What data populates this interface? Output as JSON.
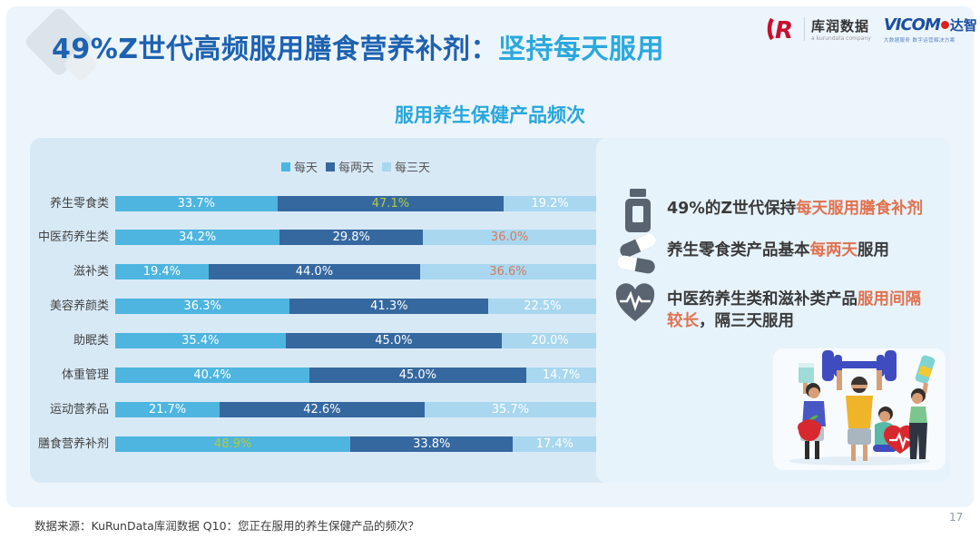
{
  "page": {
    "title_main": "49%Z世代高频服用膳食营养补剂：",
    "title_highlight": "坚持每天服用",
    "page_number": "17",
    "source_note": "数据来源：KuRunData库润数据 Q10：您正在服用的养生保健产品的频次？"
  },
  "logos": {
    "kurun": {
      "monogram": "R",
      "name": "库润数据",
      "tagline": "a kurundata company"
    },
    "vicom": {
      "name": "VICOM",
      "suffix": "达智",
      "tagline": "大数据服务 数字运营解决方案"
    }
  },
  "chart_data": {
    "type": "bar",
    "orientation": "horizontal-stacked",
    "title": "服用养生保健产品频次",
    "legend_position": "top",
    "categories": [
      "养生零食类",
      "中医药养生类",
      "滋补类",
      "美容养颜类",
      "助眠类",
      "体重管理",
      "运动营养品",
      "膳食营养补剂"
    ],
    "series": [
      {
        "name": "每天",
        "color": "#4db5df",
        "values": [
          33.7,
          34.2,
          19.4,
          36.3,
          35.4,
          40.4,
          21.7,
          48.9
        ]
      },
      {
        "name": "每两天",
        "color": "#35689f",
        "values": [
          47.1,
          29.8,
          44.0,
          41.3,
          45.0,
          45.0,
          42.6,
          33.8
        ]
      },
      {
        "name": "每三天",
        "color": "#a8d7ef",
        "values": [
          19.2,
          36.0,
          36.6,
          22.5,
          20.0,
          14.7,
          35.7,
          17.4
        ]
      }
    ],
    "label_format": "{value}%",
    "value_label_default_color": "#ffffff",
    "label_overrides": [
      {
        "row": 0,
        "series": 1,
        "color": "#b2cc3e"
      },
      {
        "row": 1,
        "series": 2,
        "color": "#d57a5e"
      },
      {
        "row": 2,
        "series": 2,
        "color": "#d57a5e"
      },
      {
        "row": 7,
        "series": 0,
        "color": "#b2cc3e"
      }
    ],
    "xlim": [
      0,
      100
    ]
  },
  "insights": [
    {
      "icon": "pill-bottle-icon",
      "parts": [
        {
          "t": "49%的Z世代保持",
          "c": "dark"
        },
        {
          "t": "每天服用膳食补剂",
          "c": "accent"
        }
      ]
    },
    {
      "icon": "capsules-icon",
      "parts": [
        {
          "t": "养生零食类产品基本",
          "c": "dark"
        },
        {
          "t": "每两天",
          "c": "accent"
        },
        {
          "t": "服用",
          "c": "dark"
        }
      ]
    },
    {
      "icon": "heart-pulse-icon",
      "parts": [
        {
          "t": "中医药养生类和滋补类产品",
          "c": "dark"
        },
        {
          "t": "服用间隔较长",
          "c": "accent"
        },
        {
          "t": "，隔三天服用",
          "c": "dark"
        }
      ]
    }
  ],
  "colors": {
    "title_main": "#1e62b0",
    "title_highlight": "#2ba9dd",
    "chart_title": "#28a7da",
    "panel_bg": "#d8e9f6",
    "right_panel_bg": "#e7f3fb",
    "accent_text": "#e0714e",
    "icon_gray": "#5a6470"
  }
}
